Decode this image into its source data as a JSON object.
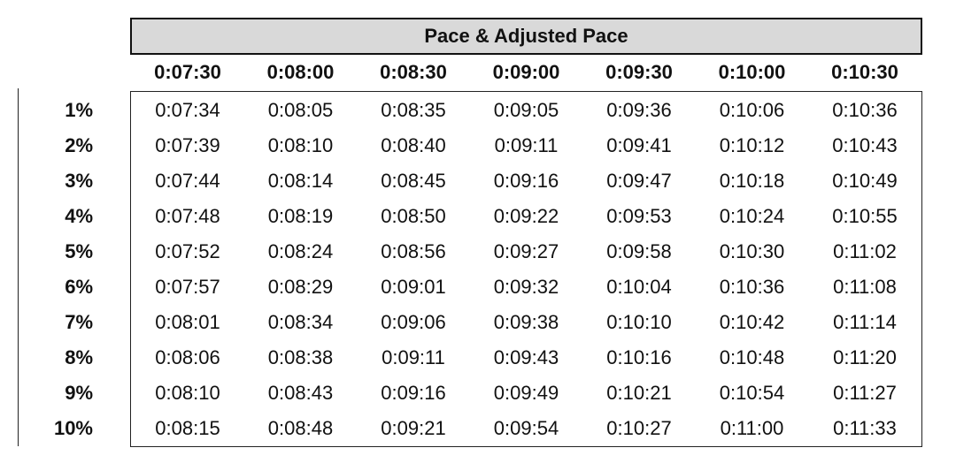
{
  "table": {
    "title": "Pace & Adjusted Pace",
    "columns": [
      "0:07:30",
      "0:08:00",
      "0:08:30",
      "0:09:00",
      "0:09:30",
      "0:10:00",
      "0:10:30"
    ],
    "rows": [
      {
        "label": "1%",
        "values": [
          "0:07:34",
          "0:08:05",
          "0:08:35",
          "0:09:05",
          "0:09:36",
          "0:10:06",
          "0:10:36"
        ]
      },
      {
        "label": "2%",
        "values": [
          "0:07:39",
          "0:08:10",
          "0:08:40",
          "0:09:11",
          "0:09:41",
          "0:10:12",
          "0:10:43"
        ]
      },
      {
        "label": "3%",
        "values": [
          "0:07:44",
          "0:08:14",
          "0:08:45",
          "0:09:16",
          "0:09:47",
          "0:10:18",
          "0:10:49"
        ]
      },
      {
        "label": "4%",
        "values": [
          "0:07:48",
          "0:08:19",
          "0:08:50",
          "0:09:22",
          "0:09:53",
          "0:10:24",
          "0:10:55"
        ]
      },
      {
        "label": "5%",
        "values": [
          "0:07:52",
          "0:08:24",
          "0:08:56",
          "0:09:27",
          "0:09:58",
          "0:10:30",
          "0:11:02"
        ]
      },
      {
        "label": "6%",
        "values": [
          "0:07:57",
          "0:08:29",
          "0:09:01",
          "0:09:32",
          "0:10:04",
          "0:10:36",
          "0:11:08"
        ]
      },
      {
        "label": "7%",
        "values": [
          "0:08:01",
          "0:08:34",
          "0:09:06",
          "0:09:38",
          "0:10:10",
          "0:10:42",
          "0:11:14"
        ]
      },
      {
        "label": "8%",
        "values": [
          "0:08:06",
          "0:08:38",
          "0:09:11",
          "0:09:43",
          "0:10:16",
          "0:10:48",
          "0:11:20"
        ]
      },
      {
        "label": "9%",
        "values": [
          "0:08:10",
          "0:08:43",
          "0:09:16",
          "0:09:49",
          "0:10:21",
          "0:10:54",
          "0:11:27"
        ]
      },
      {
        "label": "10%",
        "values": [
          "0:08:15",
          "0:08:48",
          "0:09:21",
          "0:09:54",
          "0:10:27",
          "0:11:00",
          "0:11:33"
        ]
      }
    ]
  }
}
